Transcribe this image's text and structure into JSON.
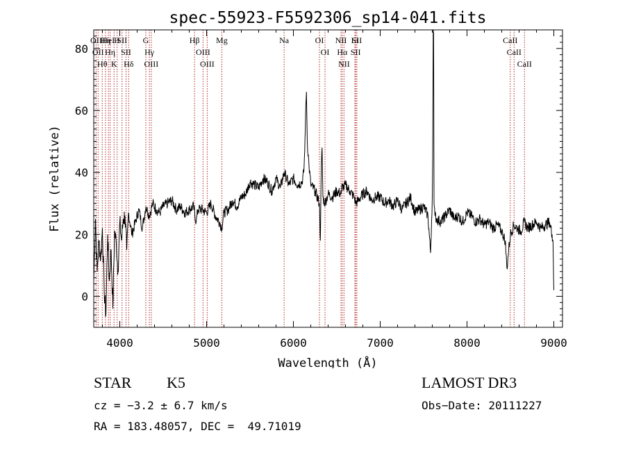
{
  "chart_data": {
    "type": "line",
    "title": "spec-55923-F5592306_sp14-041.fits",
    "xlabel": "Wavelength (Å)",
    "ylabel": "Flux (relative)",
    "xlim": [
      3700,
      9100
    ],
    "ylim": [
      -10,
      86
    ],
    "xticks": [
      4000,
      5000,
      6000,
      7000,
      8000,
      9000
    ],
    "yticks": [
      0,
      20,
      40,
      60,
      80
    ],
    "grid": false,
    "series": [
      {
        "color": "#000000",
        "x": [
          3700,
          3720,
          3740,
          3760,
          3780,
          3800,
          3820,
          3840,
          3860,
          3880,
          3900,
          3920,
          3940,
          3960,
          3980,
          4000,
          4020,
          4040,
          4060,
          4080,
          4100,
          4140,
          4180,
          4220,
          4260,
          4300,
          4340,
          4380,
          4420,
          4460,
          4500,
          4550,
          4600,
          4650,
          4700,
          4750,
          4800,
          4850,
          4880,
          4900,
          4950,
          5000,
          5050,
          5100,
          5150,
          5175,
          5200,
          5250,
          5300,
          5350,
          5400,
          5450,
          5500,
          5550,
          5600,
          5650,
          5700,
          5750,
          5800,
          5850,
          5893,
          5950,
          6000,
          6050,
          6100,
          6120,
          6130,
          6140,
          6150,
          6160,
          6180,
          6200,
          6250,
          6300,
          6310,
          6320,
          6330,
          6340,
          6360,
          6400,
          6450,
          6500,
          6550,
          6563,
          6580,
          6600,
          6650,
          6700,
          6720,
          6750,
          6800,
          6850,
          6900,
          6950,
          7000,
          7050,
          7100,
          7150,
          7200,
          7250,
          7300,
          7350,
          7400,
          7450,
          7500,
          7550,
          7580,
          7600,
          7605,
          7610,
          7615,
          7620,
          7630,
          7650,
          7700,
          7750,
          7800,
          7850,
          7900,
          7950,
          8000,
          8050,
          8100,
          8150,
          8200,
          8250,
          8300,
          8350,
          8400,
          8440,
          8460,
          8480,
          8500,
          8540,
          8580,
          8620,
          8660,
          8700,
          8750,
          8800,
          8850,
          8900,
          8950,
          8980,
          8990,
          9000
        ],
        "y": [
          5,
          25,
          8,
          18,
          12,
          22,
          2,
          -6,
          20,
          5,
          15,
          -4,
          21,
          17,
          8,
          24,
          18,
          25,
          26,
          15,
          27,
          20,
          24,
          28,
          22,
          29,
          26,
          30,
          28,
          27,
          29,
          30,
          31,
          28,
          29,
          27,
          28,
          29,
          24,
          28,
          28,
          27,
          30,
          26,
          24,
          22,
          27,
          28,
          31,
          29,
          32,
          33,
          37,
          36,
          35,
          38,
          37,
          34,
          38,
          35,
          40,
          36,
          38,
          36,
          37,
          40,
          47,
          58,
          66,
          50,
          42,
          36,
          34,
          30,
          18,
          39,
          48,
          32,
          30,
          33,
          32,
          34,
          33,
          36,
          35,
          36,
          34,
          32,
          30,
          31,
          33,
          34,
          31,
          32,
          32,
          30,
          31,
          29,
          31,
          28,
          30,
          32,
          27,
          28,
          29,
          26,
          14,
          32,
          45,
          88,
          85,
          30,
          26,
          25,
          24,
          26,
          28,
          25,
          26,
          24,
          27,
          26,
          24,
          25,
          23,
          24,
          22,
          23,
          21,
          18,
          9,
          15,
          20,
          23,
          22,
          21,
          24,
          22,
          23,
          24,
          22,
          23,
          24,
          20,
          18,
          2
        ]
      }
    ],
    "lines": [
      {
        "wave": 3727,
        "label": "OII"
      },
      {
        "wave": 3750,
        "label": "OII"
      },
      {
        "wave": 3798,
        "label": "Hθ"
      },
      {
        "wave": 3835,
        "label": "Hη"
      },
      {
        "wave": 3869,
        "label": "HeI"
      },
      {
        "wave": 3889,
        "label": "Hη"
      },
      {
        "wave": 3934,
        "label": "K"
      },
      {
        "wave": 3969,
        "label": "H"
      },
      {
        "wave": 4026,
        "label": "SII"
      },
      {
        "wave": 4072,
        "label": "SII"
      },
      {
        "wave": 4102,
        "label": "Hδ"
      },
      {
        "wave": 4300,
        "label": "G"
      },
      {
        "wave": 4341,
        "label": "Hγ"
      },
      {
        "wave": 4363,
        "label": "OIII"
      },
      {
        "wave": 4861,
        "label": "Hβ"
      },
      {
        "wave": 4959,
        "label": "OIII"
      },
      {
        "wave": 5007,
        "label": "OIII"
      },
      {
        "wave": 5175,
        "label": "Mg"
      },
      {
        "wave": 5893,
        "label": "Na"
      },
      {
        "wave": 6300,
        "label": "OI"
      },
      {
        "wave": 6364,
        "label": "OI"
      },
      {
        "wave": 6548,
        "label": "NII"
      },
      {
        "wave": 6563,
        "label": "Hα"
      },
      {
        "wave": 6583,
        "label": "NII"
      },
      {
        "wave": 6708,
        "label": "Li"
      },
      {
        "wave": 6717,
        "label": "SII"
      },
      {
        "wave": 6731,
        "label": "SII"
      },
      {
        "wave": 8498,
        "label": "CaII"
      },
      {
        "wave": 8542,
        "label": "CaII"
      },
      {
        "wave": 8662,
        "label": "CaII"
      }
    ]
  },
  "info": {
    "class": "STAR",
    "subclass": "K5",
    "survey": "LAMOST DR3",
    "cz": "cz = −3.2 ± 6.7 km/s",
    "obs_date": "Obs−Date: 20111227",
    "radec": "RA = 183.48057, DEC =  49.71019"
  },
  "colors": {
    "spectrum": "#000000",
    "line_markers": "#b22222",
    "text": "#000000"
  }
}
